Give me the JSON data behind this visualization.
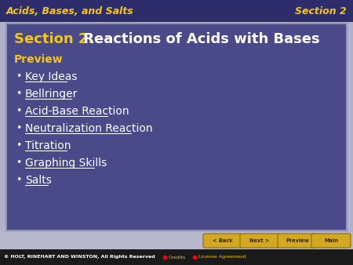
{
  "header_bg": "#2d2d6b",
  "header_left": "Acids, Bases, and Salts",
  "header_right": "Section 2",
  "header_text_color": "#f5c518",
  "main_bg": "#4a4a8a",
  "title_section2_color": "#f5c518",
  "title_section2_text": "Section 2:",
  "title_rest_color": "#ffffff",
  "title_rest_text": " Reactions of Acids with Bases",
  "preview_label": "Preview",
  "preview_color": "#f5c518",
  "bullet_items": [
    "Key Ideas",
    "Bellringer",
    "Acid-Base Reaction",
    "Neutralization Reaction",
    "Titration",
    "Graphing Skills",
    "Salts"
  ],
  "bullet_color": "#ffffff",
  "footer_bg": "#1a1a1a",
  "footer_text": "© HOLT, RINEHART AND WINSTON, All Rights Reserved",
  "footer_text_color": "#ffffff",
  "footer_credits": "Credits",
  "footer_license": "License Agreement",
  "footer_link_color": "#f5c518",
  "nav_button_bg": "#d4a820",
  "nav_button_text": "#3a2a00",
  "nav_buttons": [
    "< Back",
    "Next >",
    "Preview",
    "Main"
  ],
  "outer_bg": "#b0b0c8"
}
